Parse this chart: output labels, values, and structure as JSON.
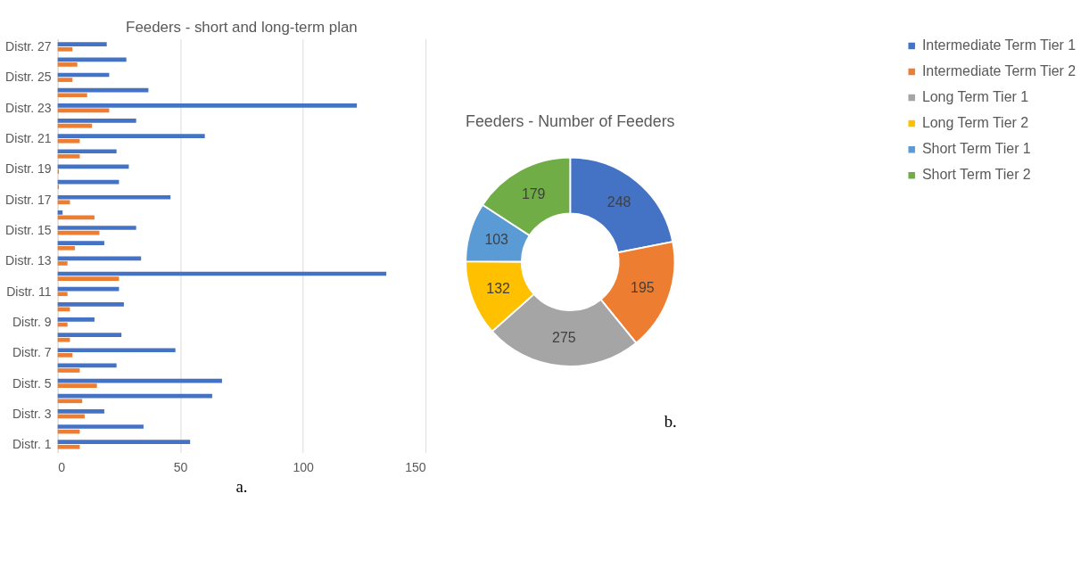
{
  "chart_data": [
    {
      "type": "bar",
      "orientation": "horizontal",
      "title": "Feeders - short and long-term plan",
      "categories": [
        "Distr. 27",
        null,
        "Distr. 25",
        null,
        "Distr. 23",
        null,
        "Distr. 21",
        null,
        "Distr. 19",
        null,
        "Distr. 17",
        null,
        "Distr. 15",
        null,
        "Distr. 13",
        null,
        "Distr. 11",
        null,
        "Distr. 9",
        null,
        "Distr. 7",
        null,
        "Distr. 5",
        null,
        "Distr. 3",
        null,
        "Distr. 1"
      ],
      "series": [
        {
          "color": "#4472c4",
          "values": [
            20,
            28,
            21,
            37,
            122,
            32,
            60,
            24,
            29,
            25,
            46,
            2,
            32,
            19,
            34,
            134,
            25,
            27,
            15,
            26,
            48,
            24,
            67,
            63,
            19,
            35,
            54
          ]
        },
        {
          "color": "#ed7d31",
          "values": [
            6,
            8,
            6,
            12,
            21,
            14,
            9,
            9,
            0.5,
            0.5,
            5,
            15,
            17,
            7,
            4,
            25,
            4,
            5,
            4,
            5,
            6,
            9,
            16,
            10,
            11,
            9,
            9
          ]
        }
      ],
      "xlim": [
        0,
        150
      ],
      "xticks": [
        0,
        50,
        100,
        150
      ],
      "grid": "x",
      "legend": false,
      "annotations": [
        "a."
      ]
    },
    {
      "type": "donut",
      "title": "Feeders - Number of Feeders",
      "categories": [
        "Intermediate Term Tier 1",
        "Intermediate Term Tier 2",
        "Long Term Tier 1",
        "Long Term Tier 2",
        "Short Term Tier 1",
        "Short Term Tier 2"
      ],
      "values": [
        248,
        195,
        275,
        132,
        103,
        179
      ],
      "colors": [
        "#4472c4",
        "#ed7d31",
        "#a5a5a5",
        "#ffc000",
        "#5b9bd5",
        "#70ad47"
      ],
      "data_labels": true,
      "legend": "right",
      "annotations": [
        "b."
      ]
    }
  ]
}
